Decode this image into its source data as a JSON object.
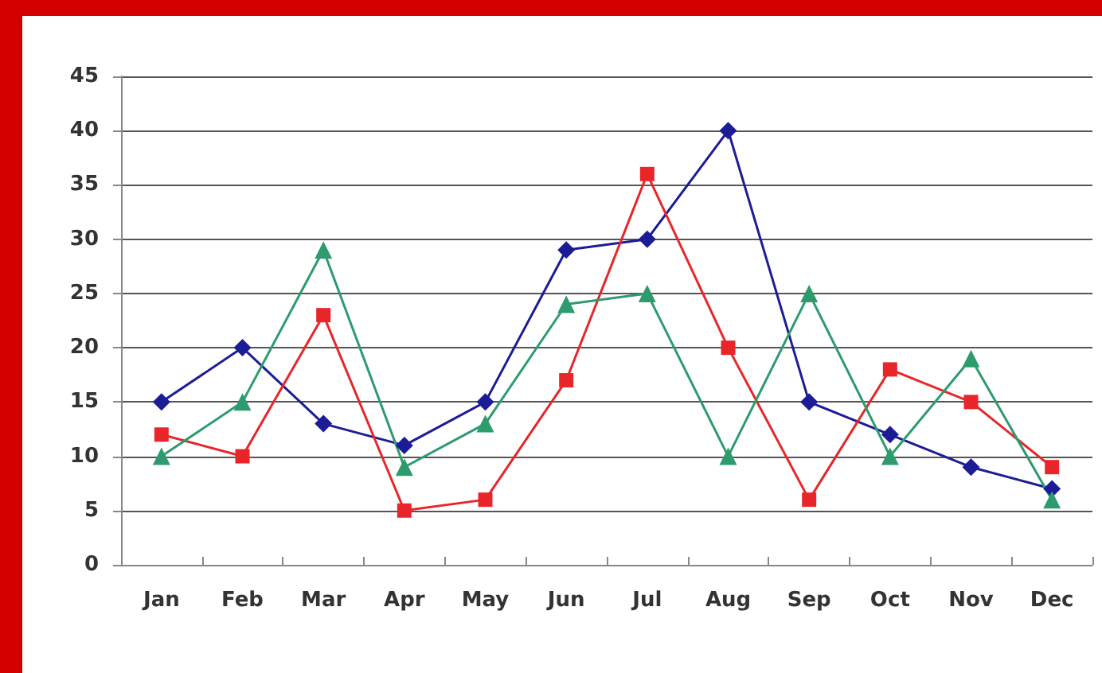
{
  "chart_data": {
    "type": "line",
    "categories": [
      "Jan",
      "Feb",
      "Mar",
      "Apr",
      "May",
      "Jun",
      "Jul",
      "Aug",
      "Sep",
      "Oct",
      "Nov",
      "Dec"
    ],
    "series": [
      {
        "color": "#1c1c96",
        "marker": "diamond",
        "values": [
          15,
          20,
          13,
          11,
          15,
          29,
          30,
          40,
          15,
          12,
          9,
          7
        ]
      },
      {
        "color": "#e8262a",
        "marker": "square",
        "values": [
          12,
          10,
          23,
          5,
          6,
          17,
          36,
          20,
          6,
          18,
          15,
          9
        ]
      },
      {
        "color": "#2e9b6e",
        "marker": "triangle",
        "values": [
          10,
          15,
          29,
          9,
          13,
          24,
          25,
          10,
          25,
          10,
          19,
          6
        ]
      }
    ],
    "ylim": [
      0,
      45
    ],
    "yticks": [
      0,
      5,
      10,
      15,
      20,
      25,
      30,
      35,
      40,
      45
    ],
    "grid": "y"
  }
}
